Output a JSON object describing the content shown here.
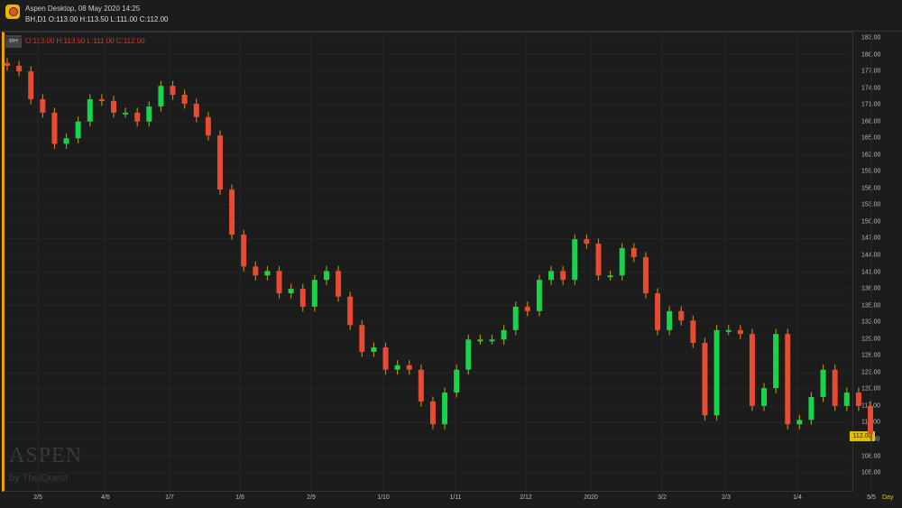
{
  "header": {
    "title": "Aspen Desktop, 08 May 2020 14:25",
    "quote": "BH,D1  O:113.00 H:113.50 L:111.00 C:112.00"
  },
  "panel": {
    "symbol": "BH",
    "ohlc": "O:113.00 H:113.50 L:111.00 C:112.00"
  },
  "watermark": {
    "brand": "ASPEN",
    "sub": "by ThaiQuest"
  },
  "colors": {
    "up": "#19d34a",
    "down": "#e84a32",
    "wick": "#b8860b",
    "background": "#1c1c1c",
    "last_price": "#e0c000"
  },
  "chart_data": {
    "type": "candlestick",
    "timeframe": "Day",
    "last_price": "112.00",
    "y_ticks": [
      "183.00",
      "180.00",
      "177.00",
      "174.00",
      "171.00",
      "168.00",
      "165.00",
      "162.00",
      "159.00",
      "156.00",
      "153.00",
      "150.00",
      "147.00",
      "144.00",
      "141.00",
      "138.00",
      "135.00",
      "132.00",
      "129.00",
      "126.00",
      "123.00",
      "120.00",
      "117.00",
      "114.00",
      "111.00",
      "108.00",
      "105.00"
    ],
    "ylim": [
      105,
      183
    ],
    "x_ticks": [
      "2/5",
      "4/6",
      "1/7",
      "1/8",
      "2/9",
      "1/10",
      "1/11",
      "2/12",
      "2020",
      "3/2",
      "2/3",
      "1/4",
      "5/5"
    ],
    "closes": [
      178,
      177,
      172,
      169.6,
      164,
      165,
      168,
      172,
      171.7,
      169.6,
      169.6,
      168,
      170.7,
      174.4,
      172.8,
      171.2,
      168.8,
      165.5,
      155.8,
      147.7,
      142,
      140.4,
      141.2,
      137.2,
      138,
      134.8,
      139.6,
      141.2,
      136.6,
      131.5,
      126.7,
      127.5,
      123.5,
      124.3,
      123.5,
      117.8,
      113.7,
      119.4,
      123.5,
      128.9,
      128.9,
      128.9,
      130.6,
      134.8,
      134,
      139.6,
      141.2,
      139.6,
      146.9,
      146.1,
      140.4,
      140.4,
      145.3,
      143.7,
      137.2,
      130.6,
      134,
      132.3,
      128.3,
      115.3,
      130.6,
      130.6,
      129.9,
      117,
      120.2,
      129.9,
      113.7,
      114.5,
      118.6,
      123.5,
      117,
      119.4,
      117,
      112
    ]
  }
}
